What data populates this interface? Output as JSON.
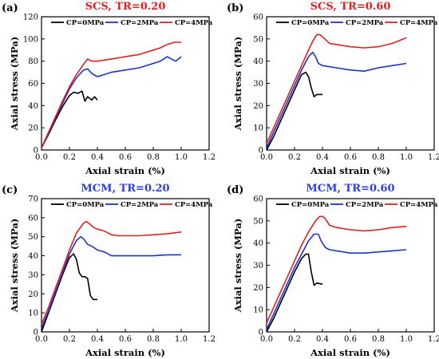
{
  "figure": {
    "background": "#ffffff",
    "axis_color": "#000000"
  },
  "chart_data": [
    {
      "type": "line",
      "panel_label": "(a)",
      "title": "SCS, TR=0.20",
      "title_color": "#e02020",
      "xlabel": "Axial strain (%)",
      "ylabel": "Axial stress (MPa)",
      "xlim": [
        0,
        1.2
      ],
      "ylim": [
        0,
        120
      ],
      "xticks": [
        0,
        0.2,
        0.4,
        0.6,
        0.8,
        1.0,
        1.2
      ],
      "yticks": [
        0,
        20,
        40,
        60,
        80,
        100,
        120
      ],
      "xtick_labels": [
        "0.0",
        "0.2",
        "0.4",
        "0.6",
        "0.8",
        "1.0",
        "1.2"
      ],
      "ytick_labels": [
        "0",
        "20",
        "40",
        "60",
        "80",
        "100",
        "120"
      ],
      "legend": {
        "position": "top",
        "entries": [
          "CP=0MPa",
          "CP=2MPa",
          "CP=4MPa"
        ]
      },
      "series": [
        {
          "name": "CP=0MPa",
          "color": "#000000",
          "x": [
            0,
            0.05,
            0.1,
            0.15,
            0.2,
            0.23,
            0.26,
            0.29,
            0.31,
            0.33,
            0.36,
            0.38,
            0.4
          ],
          "y": [
            2,
            14,
            27,
            39,
            49,
            52,
            51,
            53,
            44,
            48,
            45,
            48,
            45
          ]
        },
        {
          "name": "CP=2MPa",
          "color": "#1a33cc",
          "x": [
            0,
            0.05,
            0.1,
            0.15,
            0.2,
            0.25,
            0.3,
            0.33,
            0.36,
            0.4,
            0.45,
            0.5,
            0.55,
            0.6,
            0.65,
            0.7,
            0.75,
            0.8,
            0.85,
            0.9,
            0.93,
            0.96,
            1.0
          ],
          "y": [
            2,
            15,
            29,
            42,
            55,
            65,
            72,
            73,
            69,
            66,
            68,
            70,
            71,
            72,
            73,
            74,
            76,
            78,
            80,
            84,
            82,
            80,
            84
          ]
        },
        {
          "name": "CP=4MPa",
          "color": "#e02020",
          "x": [
            0,
            0.05,
            0.1,
            0.15,
            0.2,
            0.25,
            0.3,
            0.33,
            0.36,
            0.4,
            0.45,
            0.5,
            0.55,
            0.6,
            0.65,
            0.7,
            0.75,
            0.8,
            0.85,
            0.9,
            0.95,
            1.0
          ],
          "y": [
            2,
            16,
            30,
            44,
            57,
            68,
            77,
            82,
            80,
            80,
            81,
            82,
            83,
            84,
            85,
            86,
            88,
            90,
            92,
            95,
            97,
            97
          ]
        }
      ]
    },
    {
      "type": "line",
      "panel_label": "(b)",
      "title": "SCS, TR=0.60",
      "title_color": "#e02020",
      "xlabel": "Axial strain (%)",
      "ylabel": "Axial stress (MPa)",
      "xlim": [
        0,
        1.2
      ],
      "ylim": [
        0,
        60
      ],
      "xticks": [
        0,
        0.2,
        0.4,
        0.6,
        0.8,
        1.0,
        1.2
      ],
      "yticks": [
        0,
        10,
        20,
        30,
        40,
        50,
        60
      ],
      "xtick_labels": [
        "0.0",
        "0.2",
        "0.4",
        "0.6",
        "0.8",
        "1.0",
        "1.2"
      ],
      "ytick_labels": [
        "0",
        "10",
        "20",
        "30",
        "40",
        "50",
        "60"
      ],
      "legend": {
        "position": "top",
        "entries": [
          "CP=0MPa",
          "CP=2MPa",
          "CP=4MPa"
        ]
      },
      "series": [
        {
          "name": "CP=0MPa",
          "color": "#000000",
          "x": [
            0,
            0.05,
            0.1,
            0.15,
            0.2,
            0.25,
            0.28,
            0.3,
            0.32,
            0.34,
            0.36,
            0.4
          ],
          "y": [
            0,
            6,
            13,
            20,
            27,
            34,
            35,
            33,
            28,
            24,
            25,
            25
          ]
        },
        {
          "name": "CP=2MPa",
          "color": "#1a33cc",
          "x": [
            0,
            0.05,
            0.1,
            0.15,
            0.2,
            0.25,
            0.3,
            0.33,
            0.35,
            0.37,
            0.4,
            0.5,
            0.6,
            0.7,
            0.8,
            0.9,
            1.0
          ],
          "y": [
            1,
            8,
            15,
            22,
            29,
            36,
            42,
            44,
            42,
            39,
            38,
            37,
            36,
            35.5,
            37,
            38,
            39
          ]
        },
        {
          "name": "CP=4MPa",
          "color": "#e02020",
          "x": [
            0,
            0.05,
            0.1,
            0.15,
            0.2,
            0.25,
            0.3,
            0.33,
            0.36,
            0.38,
            0.4,
            0.45,
            0.5,
            0.6,
            0.7,
            0.8,
            0.9,
            1.0
          ],
          "y": [
            3,
            10,
            17,
            24,
            31,
            38,
            45,
            49,
            52,
            52,
            51,
            48,
            47.5,
            46.5,
            46,
            46.5,
            48,
            50.5
          ]
        }
      ]
    },
    {
      "type": "line",
      "panel_label": "(c)",
      "title": "MCM, TR=0.20",
      "title_color": "#2b3fe0",
      "xlabel": "Axial strain (%)",
      "ylabel": "Axial stress (MPa)",
      "xlim": [
        0,
        1.2
      ],
      "ylim": [
        0,
        70
      ],
      "xticks": [
        0,
        0.2,
        0.4,
        0.6,
        0.8,
        1.0,
        1.2
      ],
      "yticks": [
        0,
        10,
        20,
        30,
        40,
        50,
        60,
        70
      ],
      "xtick_labels": [
        "0.0",
        "0.2",
        "0.4",
        "0.6",
        "0.8",
        "1.0",
        "1.2"
      ],
      "ytick_labels": [
        "0",
        "10",
        "20",
        "30",
        "40",
        "50",
        "60",
        "70"
      ],
      "legend": {
        "position": "top",
        "entries": [
          "CP=0MPa",
          "CP=2MPa",
          "CP=4MPa"
        ]
      },
      "series": [
        {
          "name": "CP=0MPa",
          "color": "#000000",
          "x": [
            0,
            0.05,
            0.1,
            0.15,
            0.2,
            0.23,
            0.25,
            0.27,
            0.29,
            0.31,
            0.33,
            0.35,
            0.37,
            0.4
          ],
          "y": [
            0,
            10,
            20,
            30,
            39,
            41,
            38,
            31,
            29,
            29,
            28,
            19,
            17,
            17
          ]
        },
        {
          "name": "CP=2MPa",
          "color": "#1a33cc",
          "x": [
            0,
            0.05,
            0.1,
            0.15,
            0.2,
            0.25,
            0.28,
            0.3,
            0.33,
            0.36,
            0.4,
            0.45,
            0.5,
            0.6,
            0.7,
            0.8,
            0.9,
            1.0
          ],
          "y": [
            2,
            11,
            21,
            31,
            41,
            48,
            50,
            49,
            46,
            45,
            43,
            42,
            40,
            40,
            40,
            40,
            40.5,
            40.5
          ]
        },
        {
          "name": "CP=4MPa",
          "color": "#e02020",
          "x": [
            0,
            0.05,
            0.1,
            0.15,
            0.2,
            0.25,
            0.3,
            0.32,
            0.34,
            0.37,
            0.4,
            0.45,
            0.5,
            0.55,
            0.6,
            0.7,
            0.8,
            0.9,
            1.0
          ],
          "y": [
            4,
            13,
            23,
            33,
            43,
            52,
            57,
            58,
            57,
            55,
            54,
            53,
            51,
            50.5,
            50.5,
            50.5,
            51,
            51.5,
            52.5
          ]
        }
      ]
    },
    {
      "type": "line",
      "panel_label": "(d)",
      "title": "MCM, TR=0.60",
      "title_color": "#2b3fe0",
      "xlabel": "Axial strain (%)",
      "ylabel": "Axial stress (MPa)",
      "xlim": [
        0,
        1.2
      ],
      "ylim": [
        0,
        60
      ],
      "xticks": [
        0,
        0.2,
        0.4,
        0.6,
        0.8,
        1.0,
        1.2
      ],
      "yticks": [
        0,
        10,
        20,
        30,
        40,
        50,
        60
      ],
      "xtick_labels": [
        "0.0",
        "0.2",
        "0.4",
        "0.6",
        "0.8",
        "1.0",
        "1.2"
      ],
      "ytick_labels": [
        "0",
        "10",
        "20",
        "30",
        "40",
        "50",
        "60"
      ],
      "legend": {
        "position": "top",
        "entries": [
          "CP=0MPa",
          "CP=2MPa",
          "CP=4MPa"
        ]
      },
      "series": [
        {
          "name": "CP=0MPa",
          "color": "#000000",
          "x": [
            0,
            0.05,
            0.1,
            0.15,
            0.2,
            0.25,
            0.28,
            0.3,
            0.32,
            0.34,
            0.36,
            0.4
          ],
          "y": [
            0,
            6,
            13,
            20,
            27,
            33,
            35,
            35,
            27,
            21,
            22,
            21.5
          ]
        },
        {
          "name": "CP=2MPa",
          "color": "#1a33cc",
          "x": [
            0,
            0.05,
            0.1,
            0.15,
            0.2,
            0.25,
            0.3,
            0.34,
            0.37,
            0.39,
            0.42,
            0.45,
            0.5,
            0.6,
            0.7,
            0.8,
            0.9,
            1.0
          ],
          "y": [
            1,
            8,
            15,
            22,
            29,
            35,
            41,
            44,
            44,
            41,
            38,
            37,
            36.5,
            35.5,
            35.5,
            36,
            36.5,
            37
          ]
        },
        {
          "name": "CP=4MPa",
          "color": "#e02020",
          "x": [
            0,
            0.05,
            0.1,
            0.15,
            0.2,
            0.25,
            0.3,
            0.35,
            0.38,
            0.4,
            0.42,
            0.45,
            0.5,
            0.6,
            0.7,
            0.8,
            0.9,
            1.0
          ],
          "y": [
            4,
            11,
            18,
            25,
            32,
            39,
            45,
            50,
            52,
            52,
            51,
            48,
            47,
            46,
            45.5,
            46,
            47,
            47.5
          ]
        }
      ]
    }
  ]
}
